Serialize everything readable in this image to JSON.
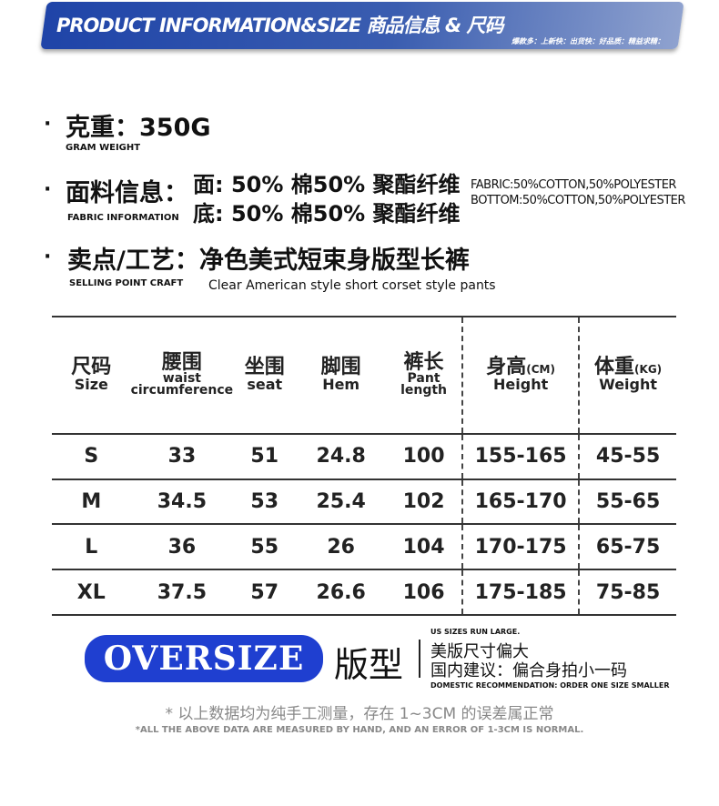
{
  "banner": {
    "title": "PRODUCT INFORMATION&SIZE 商品信息 & 尺码",
    "subtitle": "爆款多：上新快：出货快：好品质：精益求精："
  },
  "weight": {
    "label": "克重：350G",
    "en": "GRAM WEIGHT"
  },
  "fabric": {
    "label": "面料信息：",
    "en": "FABRIC INFORMATION",
    "line1": "面:  50% 棉50% 聚酯纤维",
    "line2": "底:  50% 棉50% 聚酯纤维",
    "en1": "FABRIC:50%COTTON,50%POLYESTER",
    "en2": "BOTTOM:50%COTTON,50%POLYESTER"
  },
  "selling": {
    "label": "卖点/工艺：净色美式短束身版型长裤",
    "en": "SELLING POINT CRAFT",
    "desc": "Clear American style short corset style pants"
  },
  "table": {
    "headers": [
      {
        "zh": "尺码",
        "en": "Size"
      },
      {
        "zh": "腰围",
        "en": "waist circumference"
      },
      {
        "zh": "坐围",
        "en": "seat"
      },
      {
        "zh": "脚围",
        "en": "Hem"
      },
      {
        "zh": "裤长",
        "en": "Pant length"
      },
      {
        "zh": "身高",
        "unit": "(CM)",
        "en": "Height"
      },
      {
        "zh": "体重",
        "unit": "(KG)",
        "en": "Weight"
      }
    ],
    "rows": [
      [
        "S",
        "33",
        "51",
        "24.8",
        "100",
        "155-165",
        "45-55"
      ],
      [
        "M",
        "34.5",
        "53",
        "25.4",
        "102",
        "165-170",
        "55-65"
      ],
      [
        "L",
        "36",
        "55",
        "26",
        "104",
        "170-175",
        "65-75"
      ],
      [
        "XL",
        "37.5",
        "57",
        "26.6",
        "106",
        "175-185",
        "75-85"
      ]
    ]
  },
  "oversize": {
    "badge": "OVERSIZE",
    "label": "版型",
    "us": "US SIZES RUN LARGE.",
    "line1": "美版尺寸偏大",
    "line2": "国内建议：偏合身拍小一码",
    "en": "DOMESTIC RECOMMENDATION: ORDER ONE SIZE SMALLER"
  },
  "note": {
    "zh": "* 以上数据均为纯手工测量，存在 1~3CM 的误差属正常",
    "en": "*ALL THE ABOVE DATA ARE MEASURED BY HAND, AND AN ERROR OF 1-3CM IS NORMAL."
  },
  "colors": {
    "banner": "#1f44a8",
    "badge": "#1f3fd0"
  }
}
